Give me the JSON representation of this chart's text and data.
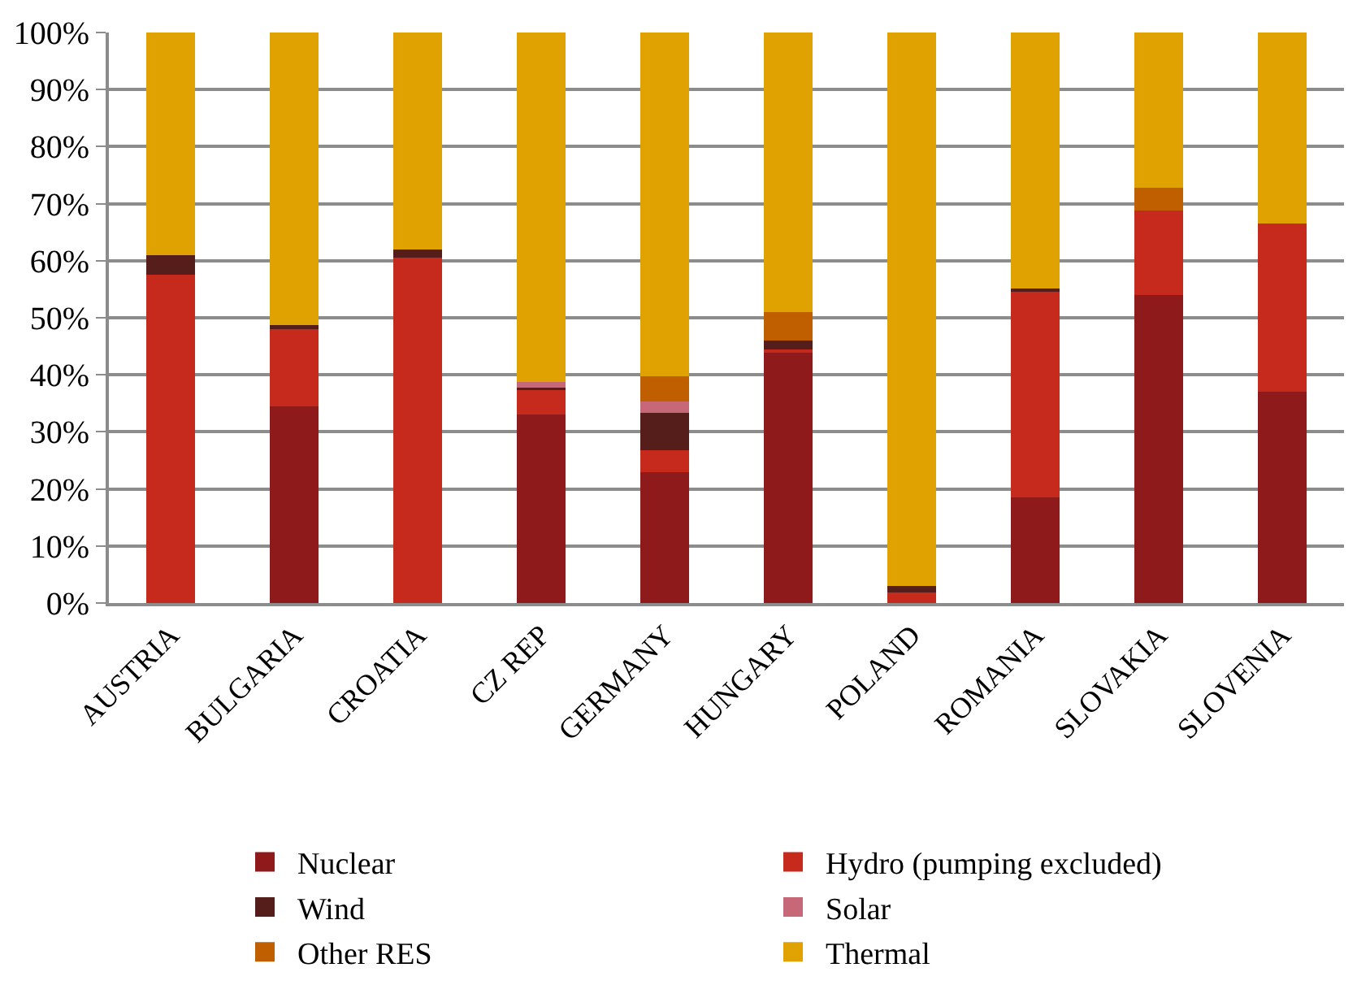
{
  "chart_data": {
    "type": "bar",
    "stacked": true,
    "categories": [
      "AUSTRIA",
      "BULGARIA",
      "CROATIA",
      "CZ REP",
      "GERMANY",
      "HUNGARY",
      "POLAND",
      "ROMANIA",
      "SLOVAKIA",
      "SLOVENIA"
    ],
    "series": [
      {
        "name": "Nuclear",
        "color": "#8e1a1c",
        "values": [
          0,
          34.5,
          0,
          33,
          23,
          44,
          0,
          18.5,
          54,
          37
        ]
      },
      {
        "name": "Hydro (pumping excluded)",
        "color": "#c62a1c",
        "values": [
          57.5,
          13.5,
          60.5,
          4.5,
          3.8,
          0.5,
          1.8,
          36,
          14.8,
          29.5
        ]
      },
      {
        "name": "Wind",
        "color": "#561e1b",
        "values": [
          3.5,
          0.7,
          1.5,
          0.3,
          6.5,
          1.5,
          1.2,
          0.6,
          0,
          0
        ]
      },
      {
        "name": "Solar",
        "color": "#c76878",
        "values": [
          0,
          0,
          0,
          1,
          2,
          0,
          0,
          0,
          0,
          0
        ]
      },
      {
        "name": "Other RES",
        "color": "#c05f00",
        "values": [
          0,
          0,
          0,
          0,
          4.5,
          5,
          0,
          0,
          4,
          0
        ]
      },
      {
        "name": "Thermal",
        "color": "#e0a200",
        "values": [
          39,
          51.3,
          38,
          61.2,
          60.2,
          49,
          97,
          44.9,
          27.2,
          33.5
        ]
      }
    ],
    "ylim": [
      0,
      100
    ],
    "yticks": [
      {
        "value": 0,
        "label": "0%"
      },
      {
        "value": 10,
        "label": "10%"
      },
      {
        "value": 20,
        "label": "20%"
      },
      {
        "value": 30,
        "label": "30%"
      },
      {
        "value": 40,
        "label": "40%"
      },
      {
        "value": 50,
        "label": "50%"
      },
      {
        "value": 60,
        "label": "60%"
      },
      {
        "value": 70,
        "label": "70%"
      },
      {
        "value": 80,
        "label": "80%"
      },
      {
        "value": 90,
        "label": "90%"
      },
      {
        "value": 100,
        "label": "100%"
      }
    ],
    "grid": "y",
    "legend": "bottom"
  }
}
